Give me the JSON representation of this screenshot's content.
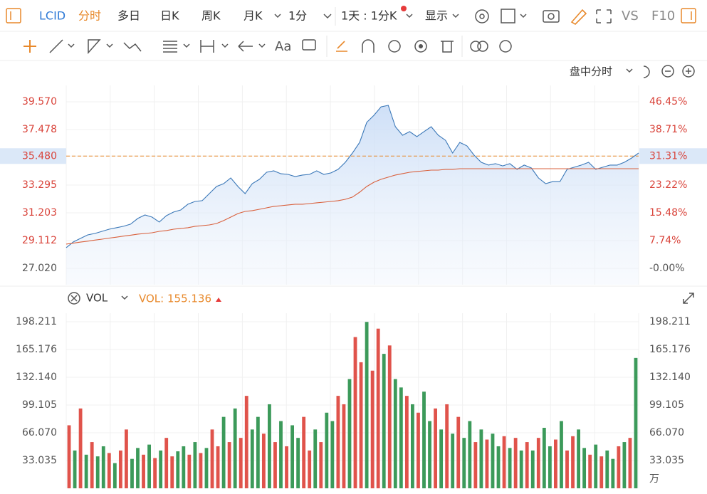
{
  "toolbar": {
    "symbol": "LCID",
    "tabs": [
      "分时",
      "多日",
      "日K",
      "周K",
      "月K"
    ],
    "interval": "1分",
    "range": "1天 : 1分K",
    "display": "显示",
    "compare": "VS",
    "f10": "F10"
  },
  "session": "盘中分时",
  "indicator": {
    "name": "VOL",
    "readout": "VOL: 155.136"
  },
  "chart_data": [
    {
      "type": "line",
      "ylim": [
        25.787,
        40.803
      ],
      "yticks": [
        {
          "value": 39.57,
          "label": "39.570"
        },
        37.478,
        {
          "value": 35.48,
          "label": "35.480"
        },
        33.295,
        31.203,
        29.112,
        {
          "value": 27.02,
          "label": "27.020"
        }
      ],
      "y2lim": [
        -4.57,
        51.02
      ],
      "y2ticks": [
        {
          "value": 46.45,
          "label": "46.45%"
        },
        {
          "value": 38.71,
          "label": "38.71%"
        },
        {
          "value": 31.31,
          "label": "31.31%"
        },
        {
          "value": 23.22,
          "label": "23.22%"
        },
        {
          "value": 15.48,
          "label": "15.48%"
        },
        {
          "value": 7.74,
          "label": "7.74%"
        },
        {
          "value": 0,
          "label": "-0.00%"
        }
      ],
      "crosshair_tick": 2,
      "grid": true,
      "series": [
        {
          "color": "#3b78b8",
          "values": [
            28.58,
            29.01,
            29.28,
            29.54,
            29.65,
            29.81,
            29.97,
            30.08,
            30.19,
            30.35,
            30.78,
            31.04,
            30.88,
            30.51,
            30.99,
            31.26,
            31.42,
            31.85,
            32.06,
            32.12,
            32.65,
            33.19,
            33.4,
            33.83,
            33.19,
            32.65,
            33.4,
            33.73,
            34.26,
            34.37,
            34.15,
            34.1,
            33.94,
            34.05,
            34.1,
            34.37,
            34.1,
            34.21,
            34.48,
            35.01,
            35.71,
            36.51,
            38.02,
            38.55,
            39.19,
            39.3,
            37.69,
            37.05,
            37.32,
            36.94,
            37.32,
            37.69,
            37.05,
            36.67,
            35.71,
            36.51,
            36.25,
            35.55,
            35.01,
            34.8,
            34.91,
            34.74,
            34.91,
            34.48,
            34.8,
            34.58,
            33.83,
            33.4,
            33.56,
            33.56,
            34.48,
            34.64,
            34.8,
            35.01,
            34.48,
            34.64,
            34.8,
            34.8,
            35.01,
            35.33,
            35.71
          ]
        },
        {
          "color": "#d9603c",
          "values": [
            28.85,
            28.92,
            29.0,
            29.07,
            29.15,
            29.22,
            29.3,
            29.37,
            29.45,
            29.52,
            29.6,
            29.65,
            29.7,
            29.81,
            29.87,
            29.97,
            30.03,
            30.08,
            30.19,
            30.24,
            30.29,
            30.4,
            30.62,
            30.88,
            31.15,
            31.31,
            31.37,
            31.47,
            31.58,
            31.69,
            31.74,
            31.8,
            31.85,
            31.85,
            31.9,
            31.96,
            32.01,
            32.06,
            32.12,
            32.22,
            32.39,
            32.76,
            33.19,
            33.51,
            33.73,
            33.89,
            34.05,
            34.16,
            34.26,
            34.32,
            34.37,
            34.42,
            34.42,
            34.48,
            34.48,
            34.53,
            34.53,
            34.53,
            34.53,
            34.53,
            34.53,
            34.53,
            34.53,
            34.53,
            34.53,
            34.53,
            34.53,
            34.53,
            34.53,
            34.53,
            34.53,
            34.53,
            34.53,
            34.53,
            34.53,
            34.53,
            34.53,
            34.53,
            34.53,
            34.53,
            34.53
          ]
        }
      ]
    },
    {
      "type": "bar",
      "unit": "万",
      "ylim": [
        0,
        208.37
      ],
      "yticks": [
        198.211,
        165.176,
        {
          "value": 132.14,
          "label": "132.140"
        },
        99.105,
        {
          "value": 66.07,
          "label": "66.070"
        },
        33.035
      ],
      "grid": true,
      "values": [
        75,
        45,
        95,
        40,
        55,
        38,
        50,
        42,
        30,
        45,
        70,
        35,
        48,
        40,
        52,
        36,
        45,
        60,
        38,
        44,
        50,
        40,
        55,
        42,
        48,
        70,
        50,
        85,
        55,
        95,
        60,
        110,
        70,
        85,
        65,
        100,
        55,
        80,
        50,
        75,
        60,
        85,
        45,
        70,
        55,
        90,
        80,
        110,
        100,
        130,
        180,
        150,
        198,
        140,
        190,
        160,
        170,
        130,
        120,
        110,
        100,
        90,
        115,
        80,
        95,
        70,
        100,
        65,
        85,
        60,
        80,
        55,
        70,
        58,
        65,
        50,
        62,
        48,
        60,
        45,
        55,
        45,
        60,
        72,
        50,
        58,
        80,
        45,
        62,
        70,
        48,
        40,
        52,
        38,
        45,
        35,
        50,
        55,
        60,
        155.136
      ],
      "colors": [
        "#e0534b",
        "#3c9a5a",
        "#e0534b",
        "#3c9a5a",
        "#e0534b",
        "#3c9a5a",
        "#3c9a5a",
        "#e0534b",
        "#3c9a5a",
        "#e0534b",
        "#e0534b",
        "#3c9a5a",
        "#3c9a5a",
        "#e0534b",
        "#3c9a5a",
        "#e0534b",
        "#3c9a5a",
        "#e0534b",
        "#e0534b",
        "#3c9a5a",
        "#3c9a5a",
        "#e0534b",
        "#3c9a5a",
        "#e0534b",
        "#3c9a5a",
        "#e0534b",
        "#e0534b",
        "#3c9a5a",
        "#e0534b",
        "#3c9a5a",
        "#e0534b",
        "#e0534b",
        "#3c9a5a",
        "#3c9a5a",
        "#e0534b",
        "#3c9a5a",
        "#e0534b",
        "#3c9a5a",
        "#e0534b",
        "#3c9a5a",
        "#3c9a5a",
        "#e0534b",
        "#e0534b",
        "#3c9a5a",
        "#e0534b",
        "#3c9a5a",
        "#3c9a5a",
        "#e0534b",
        "#e0534b",
        "#3c9a5a",
        "#e0534b",
        "#e0534b",
        "#3c9a5a",
        "#e0534b",
        "#e0534b",
        "#3c9a5a",
        "#e0534b",
        "#3c9a5a",
        "#3c9a5a",
        "#e0534b",
        "#3c9a5a",
        "#e0534b",
        "#3c9a5a",
        "#3c9a5a",
        "#e0534b",
        "#3c9a5a",
        "#e0534b",
        "#3c9a5a",
        "#e0534b",
        "#3c9a5a",
        "#3c9a5a",
        "#e0534b",
        "#3c9a5a",
        "#e0534b",
        "#3c9a5a",
        "#3c9a5a",
        "#e0534b",
        "#3c9a5a",
        "#e0534b",
        "#3c9a5a",
        "#e0534b",
        "#3c9a5a",
        "#e0534b",
        "#3c9a5a",
        "#3c9a5a",
        "#e0534b",
        "#3c9a5a",
        "#e0534b",
        "#e0534b",
        "#3c9a5a",
        "#3c9a5a",
        "#e0534b",
        "#3c9a5a",
        "#e0534b",
        "#3c9a5a",
        "#3c9a5a",
        "#e0534b",
        "#3c9a5a",
        "#e0534b",
        "#3c9a5a"
      ]
    }
  ]
}
